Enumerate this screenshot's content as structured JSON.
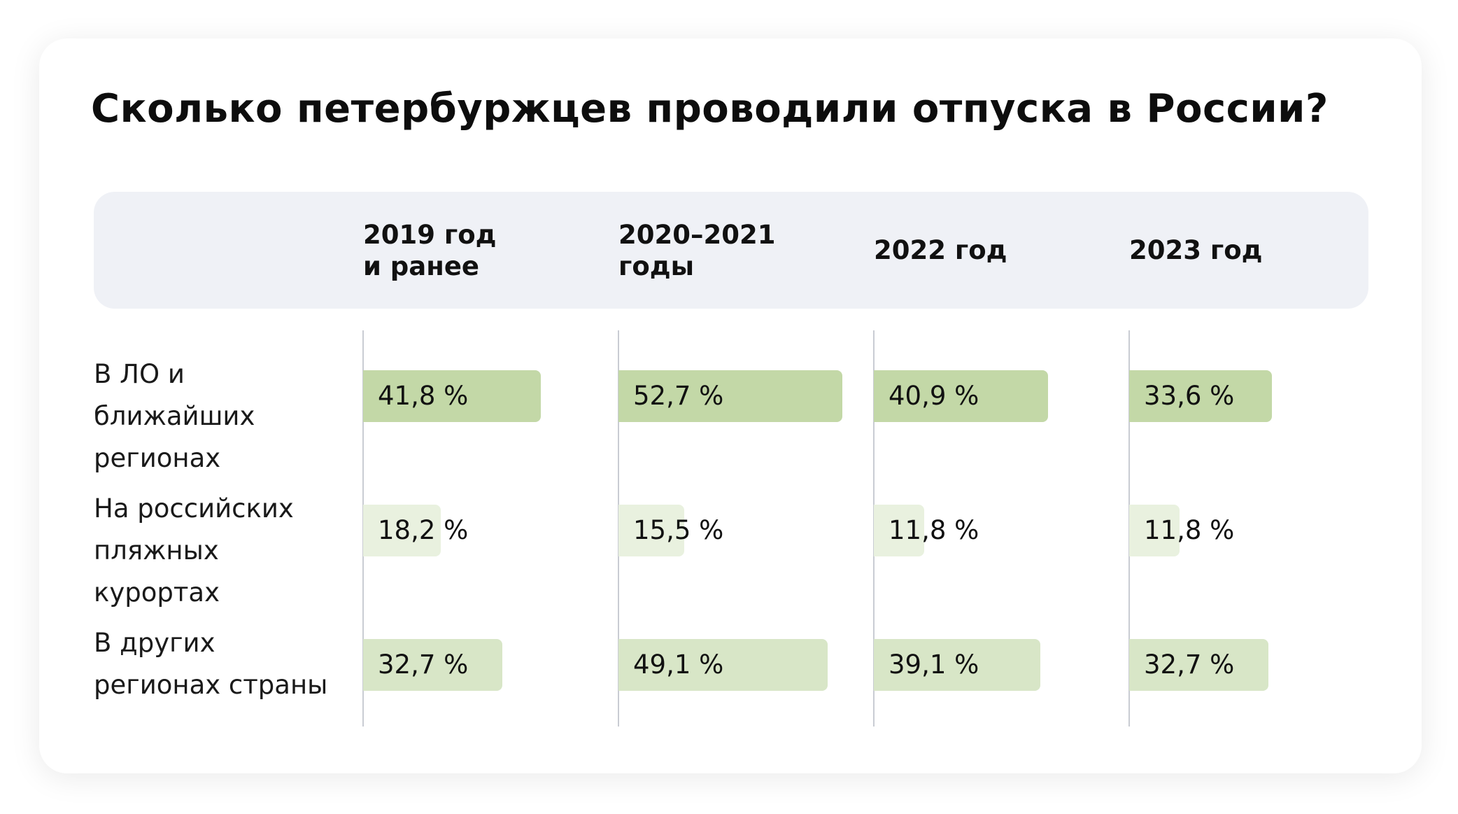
{
  "chart_data": {
    "type": "bar",
    "title": "Сколько петербуржцев проводили отпуска в России?",
    "categories": [
      "2019 год\nи ранее",
      "2020–2021\nгоды",
      "2022 год",
      "2023 год"
    ],
    "series": [
      {
        "name": "В ЛО и ближайших регионах",
        "values": [
          41.8,
          52.7,
          40.9,
          33.6
        ],
        "labels": [
          "41,8 %",
          "52,7 %",
          "40,9 %",
          "33,6 %"
        ],
        "color": "#c3d8a7"
      },
      {
        "name": "На российских пляжных курортах",
        "values": [
          18.2,
          15.5,
          11.8,
          11.8
        ],
        "labels": [
          "18,2 %",
          "15,5 %",
          "11,8 %",
          "11,8 %"
        ],
        "color": "#e9f1df"
      },
      {
        "name": "В других регионах страны",
        "values": [
          32.7,
          49.1,
          39.1,
          32.7
        ],
        "labels": [
          "32,7 %",
          "49,1 %",
          "39,1 %",
          "32,7 %"
        ],
        "color": "#d8e6c7"
      }
    ],
    "xlim": [
      0,
      60
    ],
    "grid": false,
    "legend": "none"
  }
}
